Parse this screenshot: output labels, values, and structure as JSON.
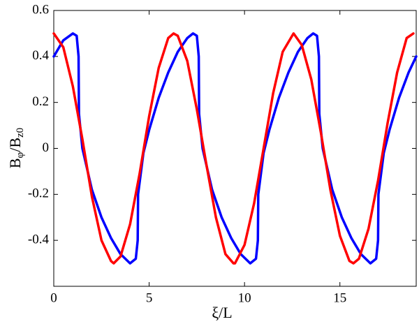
{
  "chart_data": {
    "type": "line",
    "xlabel": "ξ/L",
    "ylabel": [
      "B",
      "φ",
      "/B",
      "z0"
    ],
    "xlim": [
      0,
      19
    ],
    "xticks": [
      0,
      5,
      10,
      15
    ],
    "ylim": [
      -0.6,
      0.6
    ],
    "yticks": [
      -0.4,
      -0.2,
      0,
      0.2,
      0.4,
      0.6
    ],
    "series": [
      {
        "color": "#0000ff",
        "x": [
          0,
          0.5,
          1.0,
          1.2,
          1.3,
          1.32,
          1.5,
          2.0,
          2.5,
          3.0,
          3.5,
          4.0,
          4.3,
          4.4,
          4.42,
          4.7,
          5.0,
          5.5,
          6.0,
          6.5,
          7.0,
          7.3,
          7.5,
          7.6,
          7.62,
          7.8,
          8.3,
          8.8,
          9.3,
          9.8,
          10.3,
          10.6,
          10.7,
          10.72,
          11.0,
          11.3,
          11.8,
          12.3,
          12.8,
          13.3,
          13.6,
          13.8,
          13.9,
          13.92,
          14.1,
          14.6,
          15.1,
          15.6,
          16.1,
          16.6,
          16.9,
          17.0,
          17.02,
          17.3,
          17.6,
          18.1,
          18.6,
          19.0
        ],
        "values": [
          0.4,
          0.47,
          0.5,
          0.49,
          0.4,
          0.15,
          0.0,
          -0.18,
          -0.3,
          -0.39,
          -0.46,
          -0.5,
          -0.48,
          -0.4,
          -0.2,
          -0.02,
          0.08,
          0.22,
          0.33,
          0.42,
          0.48,
          0.5,
          0.49,
          0.4,
          0.15,
          0.0,
          -0.18,
          -0.3,
          -0.39,
          -0.46,
          -0.5,
          -0.48,
          -0.4,
          -0.2,
          -0.02,
          0.08,
          0.22,
          0.33,
          0.42,
          0.48,
          0.5,
          0.49,
          0.4,
          0.15,
          0.0,
          -0.18,
          -0.3,
          -0.39,
          -0.46,
          -0.5,
          -0.48,
          -0.4,
          -0.2,
          -0.02,
          0.08,
          0.22,
          0.33,
          0.4
        ]
      },
      {
        "color": "#ff0000",
        "x": [
          0,
          0.5,
          1.0,
          1.5,
          2.0,
          2.5,
          3.0,
          3.14,
          3.5,
          4.0,
          4.5,
          5.0,
          5.5,
          6.0,
          6.28,
          6.5,
          7.0,
          7.5,
          8.0,
          8.5,
          9.0,
          9.42,
          9.5,
          10.0,
          10.5,
          11.0,
          11.5,
          12.0,
          12.57,
          13.0,
          13.5,
          14.0,
          14.5,
          15.0,
          15.5,
          15.71,
          16.0,
          16.5,
          17.0,
          17.5,
          18.0,
          18.5,
          18.85
        ],
        "values": [
          0.5,
          0.44,
          0.27,
          0.04,
          -0.21,
          -0.4,
          -0.49,
          -0.5,
          -0.47,
          -0.33,
          -0.11,
          0.14,
          0.35,
          0.48,
          0.5,
          0.49,
          0.38,
          0.17,
          -0.07,
          -0.3,
          -0.46,
          -0.5,
          -0.5,
          -0.42,
          -0.24,
          0.0,
          0.24,
          0.42,
          0.5,
          0.45,
          0.3,
          0.07,
          -0.18,
          -0.38,
          -0.49,
          -0.5,
          -0.48,
          -0.35,
          -0.14,
          0.11,
          0.33,
          0.48,
          0.5
        ]
      }
    ]
  }
}
